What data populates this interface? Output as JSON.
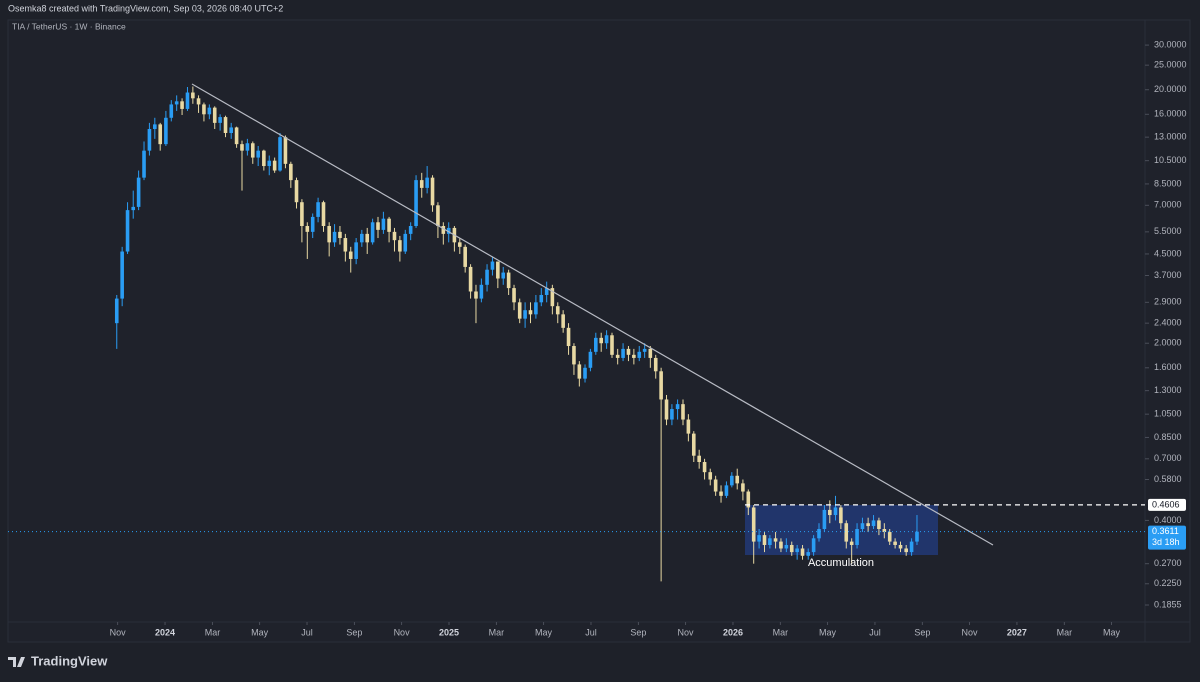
{
  "header": {
    "credit": "Osemka8 created with TradingView.com, Sep 03, 2026 08:40 UTC+2"
  },
  "footer": {
    "brand": "TradingView"
  },
  "chart_data": {
    "type": "candlestick",
    "title": "TIA / TetherUS · 1W · Binance",
    "log_scale": true,
    "grid": false,
    "up_color": "#2a9df4",
    "down_color": "#e8d9a3",
    "ylim": [
      0.135,
      37
    ],
    "yticks": [
      {
        "value": 30,
        "label": "30.0000"
      },
      {
        "value": 25,
        "label": "25.0000"
      },
      {
        "value": 20,
        "label": "20.0000"
      },
      {
        "value": 16,
        "label": "16.0000"
      },
      {
        "value": 13,
        "label": "13.0000"
      },
      {
        "value": 10.5,
        "label": "10.5000"
      },
      {
        "value": 8.5,
        "label": "8.5000"
      },
      {
        "value": 7,
        "label": "7.0000"
      },
      {
        "value": 5.5,
        "label": "5.5000"
      },
      {
        "value": 4.5,
        "label": "4.5000"
      },
      {
        "value": 3.7,
        "label": "3.7000"
      },
      {
        "value": 2.9,
        "label": "2.9000"
      },
      {
        "value": 2.4,
        "label": "2.4000"
      },
      {
        "value": 2,
        "label": "2.0000"
      },
      {
        "value": 1.6,
        "label": "1.6000"
      },
      {
        "value": 1.3,
        "label": "1.3000"
      },
      {
        "value": 1.05,
        "label": "1.0500"
      },
      {
        "value": 0.85,
        "label": "0.8500"
      },
      {
        "value": 0.7,
        "label": "0.7000"
      },
      {
        "value": 0.58,
        "label": "0.5800"
      },
      {
        "value": 0.4,
        "label": "0.4000"
      },
      {
        "value": 0.27,
        "label": "0.2700"
      },
      {
        "value": 0.225,
        "label": "0.2250"
      },
      0.1855
    ],
    "xlim": [
      2023.447,
      2027.451
    ],
    "xticks": [
      {
        "value": 2023.833,
        "label": "Nov"
      },
      {
        "value": 2024,
        "label": "2024"
      },
      {
        "value": 2024.167,
        "label": "Mar"
      },
      {
        "value": 2024.333,
        "label": "May"
      },
      {
        "value": 2024.5,
        "label": "Jul"
      },
      {
        "value": 2024.667,
        "label": "Sep"
      },
      {
        "value": 2024.833,
        "label": "Nov"
      },
      {
        "value": 2025,
        "label": "2025"
      },
      {
        "value": 2025.167,
        "label": "Mar"
      },
      {
        "value": 2025.333,
        "label": "May"
      },
      {
        "value": 2025.5,
        "label": "Jul"
      },
      {
        "value": 2025.667,
        "label": "Sep"
      },
      {
        "value": 2025.833,
        "label": "Nov"
      },
      {
        "value": 2026,
        "label": "2026"
      },
      {
        "value": 2026.167,
        "label": "Mar"
      },
      {
        "value": 2026.333,
        "label": "May"
      },
      {
        "value": 2026.5,
        "label": "Jul"
      },
      {
        "value": 2026.667,
        "label": "Sep"
      },
      {
        "value": 2026.833,
        "label": "Nov"
      },
      {
        "value": 2027,
        "label": "2027"
      },
      {
        "value": 2027.167,
        "label": "Mar"
      },
      {
        "value": 2027.333,
        "label": "May"
      }
    ],
    "x": [
      2023.83,
      2023.849,
      2023.868,
      2023.888,
      2023.907,
      2023.926,
      2023.945,
      2023.964,
      2023.983,
      2024.003,
      2024.022,
      2024.041,
      2024.06,
      2024.079,
      2024.098,
      2024.118,
      2024.137,
      2024.156,
      2024.175,
      2024.194,
      2024.213,
      2024.233,
      2024.252,
      2024.271,
      2024.29,
      2024.309,
      2024.328,
      2024.348,
      2024.367,
      2024.386,
      2024.405,
      2024.424,
      2024.443,
      2024.463,
      2024.482,
      2024.501,
      2024.52,
      2024.539,
      2024.558,
      2024.578,
      2024.597,
      2024.616,
      2024.635,
      2024.654,
      2024.673,
      2024.693,
      2024.712,
      2024.731,
      2024.75,
      2024.769,
      2024.789,
      2024.808,
      2024.827,
      2024.846,
      2024.865,
      2024.884,
      2024.904,
      2024.923,
      2024.942,
      2024.961,
      2024.98,
      2024.999,
      2025.019,
      2025.038,
      2025.057,
      2025.076,
      2025.095,
      2025.114,
      2025.134,
      2025.153,
      2025.172,
      2025.191,
      2025.21,
      2025.229,
      2025.249,
      2025.268,
      2025.287,
      2025.306,
      2025.325,
      2025.344,
      2025.364,
      2025.383,
      2025.402,
      2025.421,
      2025.44,
      2025.459,
      2025.479,
      2025.498,
      2025.517,
      2025.536,
      2025.555,
      2025.574,
      2025.594,
      2025.613,
      2025.632,
      2025.651,
      2025.67,
      2025.689,
      2025.709,
      2025.728,
      2025.747,
      2025.766,
      2025.785,
      2025.805,
      2025.824,
      2025.843,
      2025.862,
      2025.881,
      2025.9,
      2025.92,
      2025.939,
      2025.958,
      2025.977,
      2025.996,
      2026.015,
      2026.035,
      2026.054,
      2026.073,
      2026.092,
      2026.111,
      2026.13,
      2026.15,
      2026.169,
      2026.188,
      2026.207,
      2026.226,
      2026.245,
      2026.265,
      2026.284,
      2026.303,
      2026.322,
      2026.341,
      2026.361,
      2026.38,
      2026.399,
      2026.418,
      2026.437,
      2026.456,
      2026.476,
      2026.495,
      2026.514,
      2026.533,
      2026.552,
      2026.571,
      2026.59,
      2026.61,
      2026.629,
      2026.648
    ],
    "values": [
      [
        2.4,
        3.1,
        1.9,
        3.0
      ],
      [
        3.0,
        4.8,
        2.8,
        4.6
      ],
      [
        4.6,
        7.2,
        4.5,
        6.7
      ],
      [
        6.7,
        8.0,
        6.2,
        6.9
      ],
      [
        6.9,
        9.6,
        6.7,
        9.0
      ],
      [
        9.0,
        12.5,
        8.8,
        11.5
      ],
      [
        11.5,
        14.8,
        11.0,
        14.0
      ],
      [
        14.0,
        15.5,
        12.8,
        14.6
      ],
      [
        14.6,
        14.8,
        11.5,
        12.2
      ],
      [
        12.2,
        16.5,
        12.0,
        15.5
      ],
      [
        15.5,
        18.2,
        15.0,
        17.5
      ],
      [
        17.5,
        19.0,
        16.5,
        18.0
      ],
      [
        18.0,
        18.5,
        15.9,
        16.8
      ],
      [
        16.8,
        20.5,
        16.5,
        19.5
      ],
      [
        19.5,
        20.6,
        17.6,
        18.5
      ],
      [
        18.5,
        19.0,
        16.2,
        17.5
      ],
      [
        17.5,
        17.8,
        15.0,
        16.0
      ],
      [
        16.0,
        17.5,
        15.3,
        17.0
      ],
      [
        17.0,
        17.2,
        14.0,
        14.8
      ],
      [
        14.8,
        16.0,
        13.8,
        15.6
      ],
      [
        15.6,
        15.8,
        13.0,
        13.5
      ],
      [
        13.5,
        14.8,
        12.8,
        14.2
      ],
      [
        14.2,
        14.3,
        11.8,
        12.2
      ],
      [
        12.2,
        12.6,
        8.0,
        11.5
      ],
      [
        11.5,
        12.8,
        11.0,
        12.3
      ],
      [
        12.3,
        12.5,
        10.2,
        10.8
      ],
      [
        10.8,
        12.0,
        10.0,
        11.5
      ],
      [
        11.5,
        11.6,
        9.6,
        10.0
      ],
      [
        10.0,
        11.0,
        9.2,
        10.5
      ],
      [
        10.5,
        10.8,
        9.4,
        9.6
      ],
      [
        9.6,
        13.5,
        9.5,
        13.0
      ],
      [
        13.0,
        13.2,
        9.8,
        10.2
      ],
      [
        10.2,
        10.4,
        8.2,
        8.8
      ],
      [
        8.8,
        9.0,
        6.8,
        7.2
      ],
      [
        7.2,
        7.4,
        5.0,
        5.8
      ],
      [
        5.8,
        6.0,
        4.3,
        5.5
      ],
      [
        5.5,
        6.5,
        5.2,
        6.3
      ],
      [
        6.3,
        7.5,
        6.0,
        7.2
      ],
      [
        7.2,
        7.3,
        5.5,
        5.8
      ],
      [
        5.8,
        6.0,
        4.4,
        5.0
      ],
      [
        5.0,
        5.9,
        4.8,
        5.5
      ],
      [
        5.5,
        5.8,
        4.9,
        5.2
      ],
      [
        5.2,
        5.4,
        4.2,
        4.6
      ],
      [
        4.6,
        4.8,
        3.8,
        4.3
      ],
      [
        4.3,
        5.2,
        4.1,
        5.0
      ],
      [
        5.0,
        5.6,
        4.8,
        5.4
      ],
      [
        5.4,
        5.7,
        4.5,
        5.0
      ],
      [
        5.0,
        6.2,
        4.9,
        6.0
      ],
      [
        6.0,
        6.3,
        5.2,
        5.6
      ],
      [
        5.6,
        6.6,
        5.4,
        6.2
      ],
      [
        6.2,
        6.3,
        5.0,
        5.5
      ],
      [
        5.5,
        5.7,
        4.6,
        5.1
      ],
      [
        5.1,
        5.3,
        4.2,
        4.6
      ],
      [
        4.6,
        5.6,
        4.5,
        5.4
      ],
      [
        5.4,
        6.0,
        5.1,
        5.8
      ],
      [
        5.8,
        9.2,
        5.7,
        8.8
      ],
      [
        8.8,
        9.4,
        7.5,
        8.2
      ],
      [
        8.2,
        10.0,
        7.8,
        9.0
      ],
      [
        9.0,
        9.2,
        6.6,
        7.0
      ],
      [
        7.0,
        7.2,
        5.2,
        5.8
      ],
      [
        5.8,
        6.0,
        4.9,
        5.4
      ],
      [
        5.4,
        6.0,
        5.0,
        5.7
      ],
      [
        5.7,
        5.8,
        4.6,
        5.0
      ],
      [
        5.0,
        5.2,
        4.5,
        4.8
      ],
      [
        4.8,
        4.9,
        3.8,
        4.0
      ],
      [
        4.0,
        4.1,
        3.0,
        3.2
      ],
      [
        3.2,
        3.4,
        2.4,
        3.0
      ],
      [
        3.0,
        3.6,
        2.9,
        3.4
      ],
      [
        3.4,
        4.1,
        3.2,
        3.9
      ],
      [
        3.9,
        4.4,
        3.7,
        4.2
      ],
      [
        4.2,
        4.2,
        3.3,
        3.6
      ],
      [
        3.6,
        4.0,
        3.4,
        3.8
      ],
      [
        3.8,
        3.9,
        3.1,
        3.3
      ],
      [
        3.3,
        3.4,
        2.7,
        2.9
      ],
      [
        2.9,
        3.0,
        2.4,
        2.5
      ],
      [
        2.5,
        2.9,
        2.3,
        2.7
      ],
      [
        2.7,
        2.9,
        2.4,
        2.6
      ],
      [
        2.6,
        3.1,
        2.5,
        2.9
      ],
      [
        2.9,
        3.3,
        2.8,
        3.1
      ],
      [
        3.1,
        3.5,
        2.9,
        3.3
      ],
      [
        3.3,
        3.4,
        2.6,
        2.8
      ],
      [
        2.8,
        2.9,
        2.4,
        2.6
      ],
      [
        2.6,
        2.7,
        2.2,
        2.3
      ],
      [
        2.3,
        2.4,
        1.8,
        1.95
      ],
      [
        1.95,
        2.0,
        1.5,
        1.65
      ],
      [
        1.65,
        1.7,
        1.35,
        1.45
      ],
      [
        1.45,
        1.65,
        1.4,
        1.6
      ],
      [
        1.6,
        1.9,
        1.55,
        1.85
      ],
      [
        1.85,
        2.2,
        1.8,
        2.1
      ],
      [
        2.1,
        2.2,
        1.85,
        2.0
      ],
      [
        2.0,
        2.25,
        1.9,
        2.15
      ],
      [
        2.15,
        2.2,
        1.75,
        1.8
      ],
      [
        1.8,
        1.9,
        1.65,
        1.75
      ],
      [
        1.75,
        2.0,
        1.7,
        1.9
      ],
      [
        1.9,
        1.95,
        1.7,
        1.8
      ],
      [
        1.8,
        1.9,
        1.65,
        1.75
      ],
      [
        1.75,
        1.95,
        1.7,
        1.85
      ],
      [
        1.85,
        2.0,
        1.75,
        1.9
      ],
      [
        1.9,
        1.95,
        1.6,
        1.75
      ],
      [
        1.75,
        1.8,
        1.45,
        1.55
      ],
      [
        1.55,
        1.6,
        0.23,
        1.2
      ],
      [
        1.2,
        1.25,
        0.95,
        1.0
      ],
      [
        1.0,
        1.15,
        0.95,
        1.1
      ],
      [
        1.1,
        1.2,
        1.0,
        1.15
      ],
      [
        1.15,
        1.2,
        0.95,
        1.0
      ],
      [
        1.0,
        1.05,
        0.82,
        0.88
      ],
      [
        0.88,
        0.9,
        0.68,
        0.72
      ],
      [
        0.72,
        0.76,
        0.64,
        0.68
      ],
      [
        0.68,
        0.7,
        0.58,
        0.62
      ],
      [
        0.62,
        0.64,
        0.55,
        0.58
      ],
      [
        0.58,
        0.6,
        0.5,
        0.52
      ],
      [
        0.52,
        0.55,
        0.47,
        0.5
      ],
      [
        0.5,
        0.57,
        0.49,
        0.55
      ],
      [
        0.55,
        0.62,
        0.54,
        0.6
      ],
      [
        0.6,
        0.64,
        0.53,
        0.56
      ],
      [
        0.56,
        0.58,
        0.48,
        0.52
      ],
      [
        0.52,
        0.53,
        0.42,
        0.45
      ],
      [
        0.45,
        0.46,
        0.27,
        0.33
      ],
      [
        0.33,
        0.37,
        0.31,
        0.35
      ],
      [
        0.35,
        0.36,
        0.3,
        0.32
      ],
      [
        0.32,
        0.35,
        0.31,
        0.34
      ],
      [
        0.34,
        0.36,
        0.31,
        0.33
      ],
      [
        0.33,
        0.34,
        0.3,
        0.31
      ],
      [
        0.31,
        0.34,
        0.3,
        0.32
      ],
      [
        0.32,
        0.33,
        0.29,
        0.3
      ],
      [
        0.3,
        0.32,
        0.28,
        0.31
      ],
      [
        0.31,
        0.32,
        0.28,
        0.29
      ],
      [
        0.29,
        0.31,
        0.28,
        0.3
      ],
      [
        0.3,
        0.35,
        0.29,
        0.34
      ],
      [
        0.34,
        0.39,
        0.33,
        0.37
      ],
      [
        0.37,
        0.46,
        0.36,
        0.44
      ],
      [
        0.44,
        0.48,
        0.39,
        0.42
      ],
      [
        0.42,
        0.5,
        0.4,
        0.45
      ],
      [
        0.45,
        0.46,
        0.37,
        0.39
      ],
      [
        0.39,
        0.4,
        0.31,
        0.33
      ],
      [
        0.33,
        0.34,
        0.27,
        0.32
      ],
      [
        0.32,
        0.39,
        0.31,
        0.37
      ],
      [
        0.37,
        0.41,
        0.36,
        0.39
      ],
      [
        0.39,
        0.41,
        0.36,
        0.38
      ],
      [
        0.38,
        0.42,
        0.37,
        0.4
      ],
      [
        0.4,
        0.41,
        0.35,
        0.37
      ],
      [
        0.37,
        0.39,
        0.34,
        0.36
      ],
      [
        0.36,
        0.37,
        0.32,
        0.33
      ],
      [
        0.33,
        0.34,
        0.31,
        0.32
      ],
      [
        0.32,
        0.33,
        0.3,
        0.31
      ],
      [
        0.31,
        0.32,
        0.29,
        0.3
      ],
      [
        0.3,
        0.34,
        0.29,
        0.33
      ],
      [
        0.33,
        0.42,
        0.32,
        0.3611
      ]
    ],
    "price_line": 0.4606,
    "last_price": 0.3611,
    "countdown": "3d 18h",
    "annotation": "Accumulation"
  }
}
